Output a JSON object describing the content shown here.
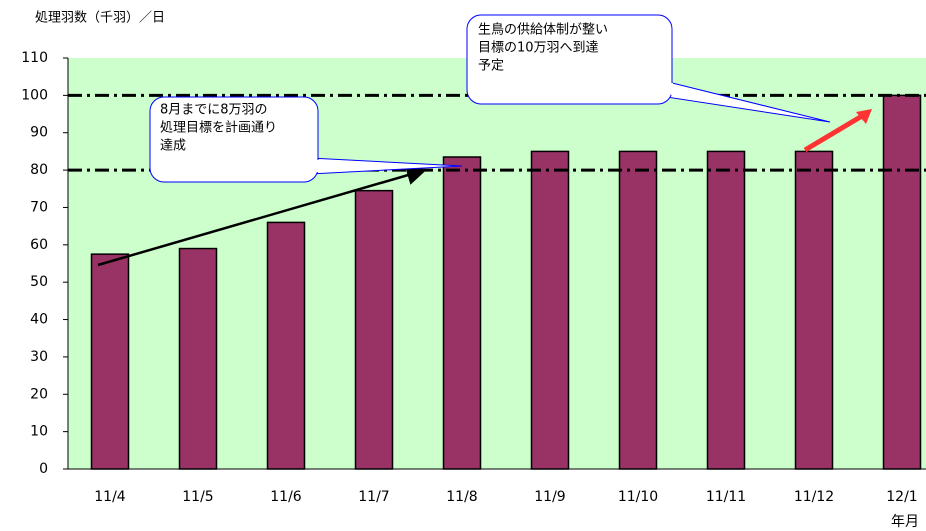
{
  "chart_data": {
    "type": "bar",
    "y_axis_label": "処理羽数（千羽）／日",
    "x_axis_label": "年月",
    "categories": [
      "11/4",
      "11/5",
      "11/6",
      "11/7",
      "11/8",
      "11/9",
      "11/10",
      "11/11",
      "11/12",
      "12/1"
    ],
    "values": [
      57.5,
      59,
      66,
      74.5,
      83.5,
      85,
      85,
      85,
      85,
      100
    ],
    "color": "#993366",
    "ylim": [
      0,
      110
    ],
    "yticks": [
      0,
      10,
      20,
      30,
      40,
      50,
      60,
      70,
      80,
      90,
      100,
      110
    ],
    "reference_lines": [
      80,
      100
    ],
    "annotations": [
      {
        "lines": [
          "8月までに8万羽の",
          "処理目標を計画通り",
          "達成"
        ]
      },
      {
        "lines": [
          "生鳥の供給体制が整い",
          "目標の10万羽へ到達",
          "予定"
        ]
      }
    ]
  }
}
